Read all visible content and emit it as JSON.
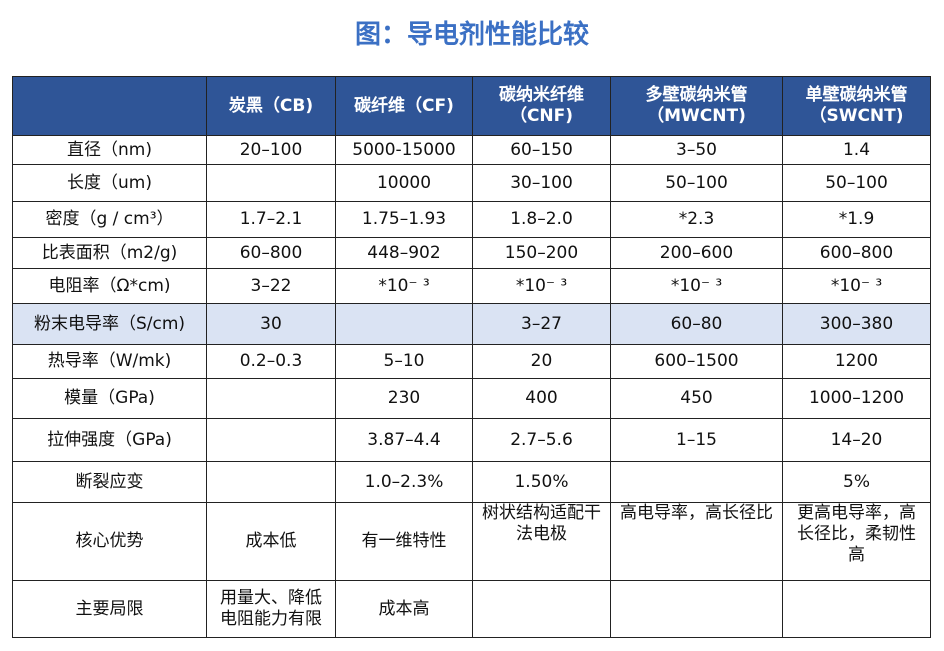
{
  "title": "图：导电剂性能比较",
  "table": {
    "header": [
      null,
      "炭黑（CB)",
      "碳纤维（CF)",
      "碳纳米纤维\n（CNF)",
      "多壁碳纳米管\n（MWCNT)",
      "单壁碳纳米管\n（SWCNT)"
    ],
    "rows": [
      [
        "直径（nm)",
        "20–100",
        "5000-15000",
        "60–150",
        "3–50",
        "1.4"
      ],
      [
        "长度（um)",
        null,
        "10000",
        "30–100",
        "50–100",
        "50–100"
      ],
      [
        "密度（g / cm³）",
        "1.7–2.1",
        "1.75–1.93",
        "1.8–2.0",
        "*2.3",
        "*1.9"
      ],
      [
        "比表面积（m2/g)",
        "60–800",
        "448–902",
        "150–200",
        "200–600",
        "600–800"
      ],
      [
        "电阻率（Ω*cm)",
        "3–22",
        "*10⁻ ³",
        "*10⁻ ³",
        "*10⁻ ³",
        "*10⁻ ³"
      ],
      [
        "粉末电导率（S/cm)",
        "30",
        null,
        "3–27",
        "60–80",
        "300–380"
      ],
      [
        "热导率（W/mk)",
        "0.2–0.3",
        "5–10",
        "20",
        "600–1500",
        "1200"
      ],
      [
        "模量（GPa)",
        null,
        "230",
        "400",
        "450",
        "1000–1200"
      ],
      [
        "拉伸强度（GPa)",
        null,
        "3.87–4.4",
        "2.7–5.6",
        "1–15",
        "14–20"
      ],
      [
        "断裂应变",
        null,
        "1.0–2.3%",
        "1.50%",
        null,
        "5%"
      ],
      [
        "核心优势",
        "成本低",
        "有一维特性",
        "树状结构适配干\n法电极",
        "高电导率，高长径比",
        "更高电导率，高\n长径比，柔韧性\n高"
      ],
      [
        "主要局限",
        "用量大、降低\n电阻能力有限",
        "成本高",
        null,
        null,
        null
      ]
    ]
  }
}
